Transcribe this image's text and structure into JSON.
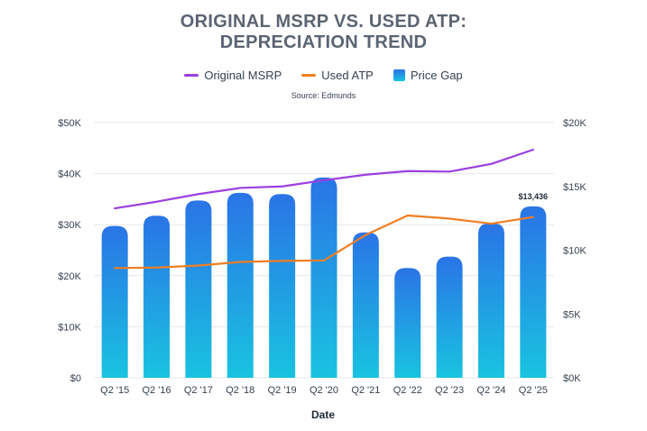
{
  "chart_data": {
    "type": "bar+line",
    "title_line1": "ORIGINAL MSRP VS. USED ATP:",
    "title_line2": "DEPRECIATION TREND",
    "source": "Source: Edmunds",
    "xlabel": "Date",
    "categories": [
      "Q2 '15",
      "Q2 '16",
      "Q2 '17",
      "Q2 '18",
      "Q2 '19",
      "Q2 '20",
      "Q2 '21",
      "Q2 '22",
      "Q2 '23",
      "Q2 '24",
      "Q2 '25"
    ],
    "left_axis": {
      "ylim": [
        0,
        50000
      ],
      "ticks": [
        0,
        10000,
        20000,
        30000,
        40000,
        50000
      ],
      "tick_labels": [
        "$0",
        "$10K",
        "$20K",
        "$30K",
        "$40K",
        "$50K"
      ]
    },
    "right_axis": {
      "ylim": [
        0,
        20000
      ],
      "ticks": [
        0,
        5000,
        10000,
        15000,
        20000
      ],
      "tick_labels": [
        "$0K",
        "$5K",
        "$10K",
        "$15K",
        "$20K"
      ]
    },
    "series": [
      {
        "name": "Original MSRP",
        "kind": "line",
        "axis": "left",
        "color": "#9b3fe0",
        "values": [
          33200,
          34500,
          36000,
          37200,
          37500,
          38700,
          39800,
          40500,
          40400,
          41900,
          44700
        ]
      },
      {
        "name": "Used ATP",
        "kind": "line",
        "axis": "left",
        "color": "#f07e22",
        "values": [
          21500,
          21600,
          22000,
          22700,
          22900,
          23000,
          28000,
          31800,
          31200,
          30200,
          31500
        ]
      },
      {
        "name": "Price Gap",
        "kind": "bar",
        "axis": "right",
        "color_top": "#2a74e6",
        "color_bottom": "#19c3e0",
        "values": [
          11900,
          12700,
          13900,
          14500,
          14400,
          15700,
          11400,
          8600,
          9500,
          12100,
          13436
        ]
      }
    ],
    "annotations": [
      {
        "series": "Price Gap",
        "category": "Q2 '25",
        "text": "$13,436"
      }
    ],
    "legend_position": "top",
    "grid": true
  }
}
